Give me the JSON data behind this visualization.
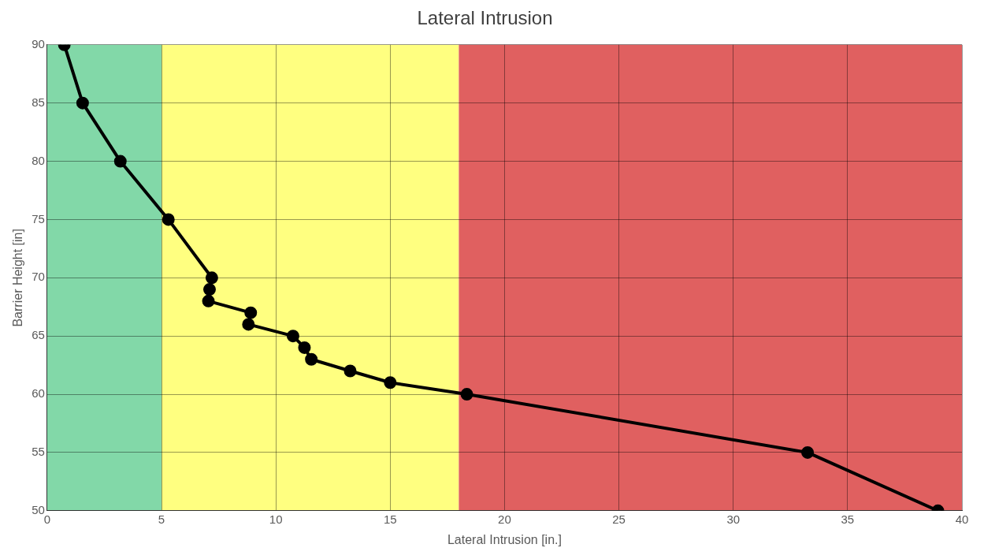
{
  "chart_data": {
    "type": "line",
    "title": "Lateral Intrusion",
    "xlabel": "Lateral Intrusion [in.]",
    "ylabel": "Barrier Height [in]",
    "series": [
      {
        "color": "#000000",
        "x": [
          0.75,
          1.55,
          3.2,
          5.3,
          7.2,
          7.1,
          7.05,
          8.9,
          8.8,
          10.75,
          11.25,
          11.55,
          13.25,
          15.0,
          18.35,
          33.25,
          38.95
        ],
        "values": [
          90,
          85,
          80,
          75,
          70,
          69,
          68,
          67,
          66,
          65,
          64,
          63,
          62,
          61,
          60,
          55,
          50
        ]
      }
    ],
    "xlim": [
      0,
      40
    ],
    "xticks": [
      0,
      5,
      10,
      15,
      20,
      25,
      30,
      35,
      40
    ],
    "ylim": [
      50,
      90
    ],
    "yticks": [
      50,
      55,
      60,
      65,
      70,
      75,
      80,
      85,
      90
    ],
    "grid": true,
    "marker": "circle",
    "line_style": "solid",
    "bands": [
      {
        "axis": "x",
        "from": 0,
        "to": 5,
        "color": "#82d8a8"
      },
      {
        "axis": "x",
        "from": 5,
        "to": 18,
        "color": "#ffff80"
      },
      {
        "axis": "x",
        "from": 18,
        "to": 40,
        "color": "#e06060"
      }
    ]
  }
}
